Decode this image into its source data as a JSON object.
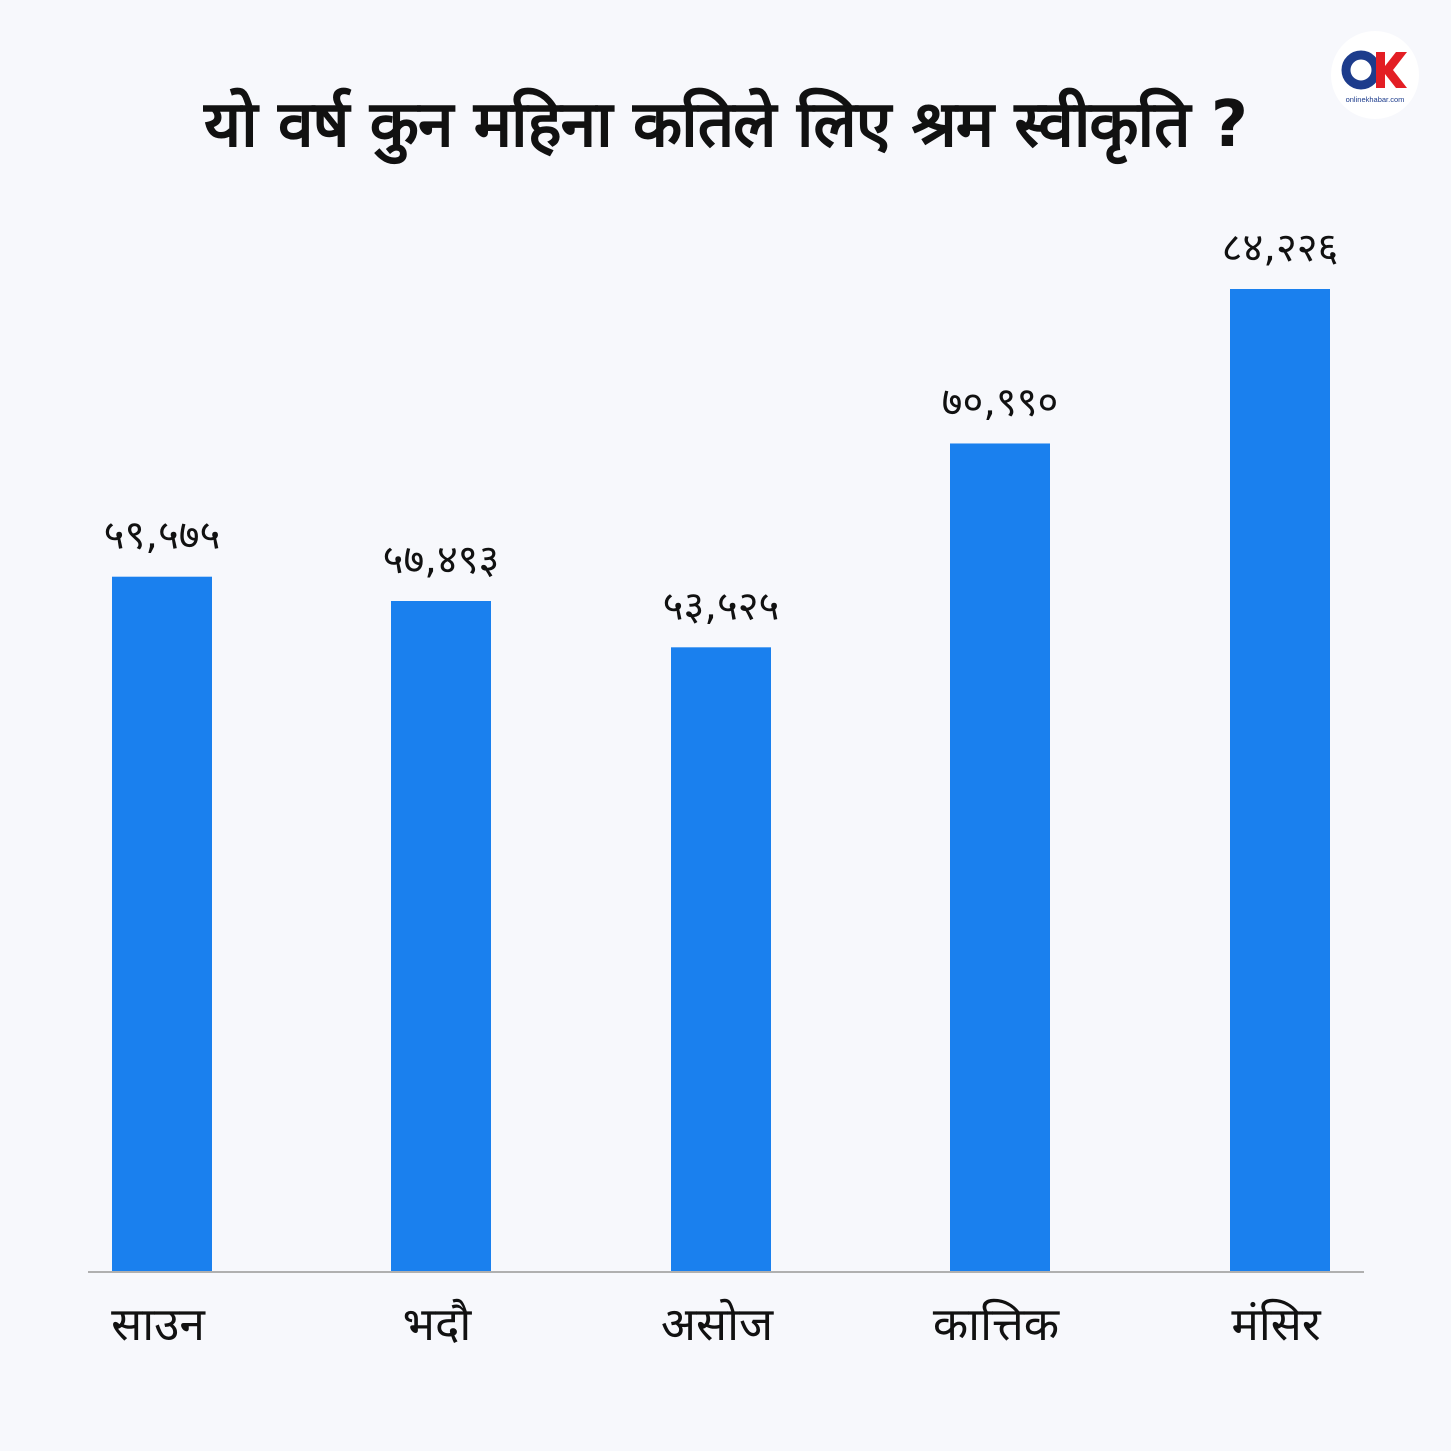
{
  "title": "यो वर्ष कुन महिना कतिले लिए श्रम स्वीकृति ?",
  "logo": {
    "mark": "OK",
    "text": "onlinekhabar.com",
    "icon": "onlinekhabar-logo-icon",
    "red": "#e31e24",
    "blue": "#1d3c8c"
  },
  "chart_data": {
    "type": "bar",
    "categories": [
      "साउन",
      "भदौ",
      "असोज",
      "कात्तिक",
      "मंसिर"
    ],
    "values": [
      59575,
      57493,
      53525,
      70990,
      84226
    ],
    "value_labels": [
      "५९,५७५",
      "५७,४९३",
      "५३,५२५",
      "७०,९९०",
      "८४,२२६"
    ],
    "ylim": [
      0,
      84226
    ],
    "bar_color": "#1a80ee",
    "axis_color": "#b0b0b0",
    "grid": false,
    "legend": "none"
  }
}
